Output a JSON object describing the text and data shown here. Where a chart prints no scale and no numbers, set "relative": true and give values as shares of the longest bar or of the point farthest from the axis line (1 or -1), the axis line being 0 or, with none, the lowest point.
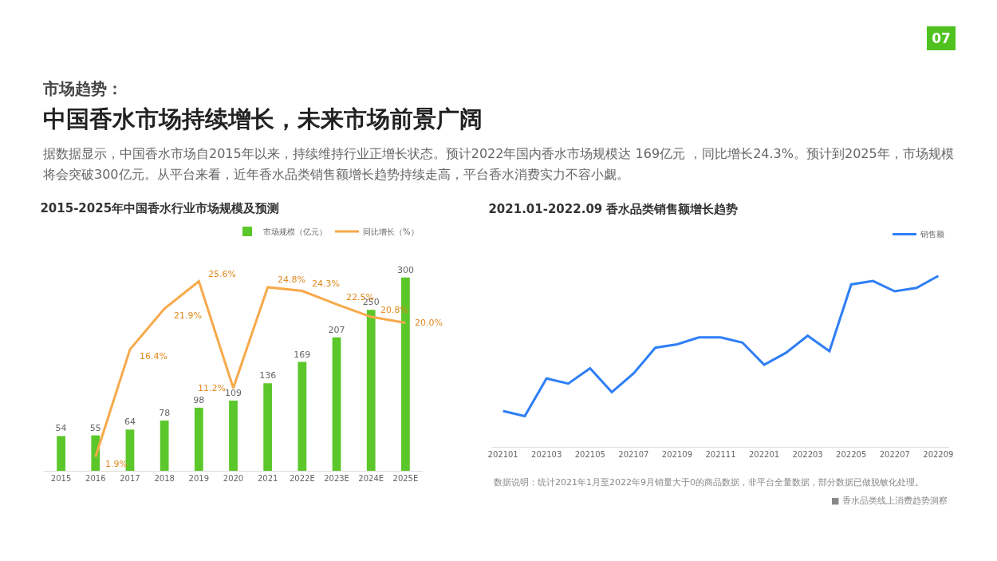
{
  "chart_data": [
    {
      "type": "other",
      "subtitle": "市场趋势：",
      "title": "中国香水市场持续增长，未来市场前景广阔",
      "annotations": [
        "据数据显示，中国香水市场自2015年以来，持续维持行业正增长状态。预计2022年国内香水市场规模达 169亿元 ，同比增长24.3%。预计到2025年，市场规模将会突破300亿元。从平台来看，近年香水品类销售额增长趋势持续走高，平台香水消费实力不容小觑。",
        "07"
      ]
    },
    {
      "type": "bar",
      "title": "2015-2025年中国香水行业市场规模及预测",
      "categories": [
        "2015",
        "2016",
        "2017",
        "2018",
        "2019",
        "2020",
        "2021",
        "2022E",
        "2023E",
        "2024E",
        "2025E"
      ],
      "legend": "top right",
      "series": [
        {
          "name": "市场规模（亿元）",
          "color": "#5cc72a",
          "values": [
            54,
            55,
            64,
            78,
            98,
            109,
            136,
            169,
            207,
            250,
            300
          ],
          "value_labels": [
            "54",
            "55",
            "64",
            "78",
            "98",
            "109",
            "136",
            "169",
            "207",
            "250",
            "300"
          ]
        },
        {
          "name": "同比增长（%）",
          "type": "line",
          "axis": "y2",
          "color": "#f7a94b",
          "values": [
            null,
            1.9,
            16.4,
            21.9,
            25.6,
            11.2,
            24.8,
            24.3,
            22.5,
            20.8,
            20.0
          ],
          "value_labels": [
            null,
            "1.9%",
            "16.4%",
            "21.9%",
            "25.6%",
            "11.2%",
            "24.8%",
            "24.3%",
            "22.5%",
            "20.8%",
            "20.0%"
          ]
        }
      ]
    },
    {
      "type": "line",
      "title": "2021.01-2022.09 香水品类销售额增长趋势",
      "relative": true,
      "legend": "top right",
      "categories": [
        "202101",
        null,
        "202103",
        null,
        "202105",
        null,
        "202107",
        null,
        "202109",
        null,
        "202111",
        null,
        "202201",
        null,
        "202203",
        null,
        "202205",
        null,
        "202207",
        null,
        "202209"
      ],
      "series": [
        {
          "name": "销售额",
          "color": "#2f7ff6",
          "values": [
            0.21,
            0.18,
            0.4,
            0.37,
            0.46,
            0.32,
            0.43,
            0.58,
            0.6,
            0.64,
            0.64,
            0.61,
            0.48,
            0.55,
            0.65,
            0.56,
            0.95,
            0.97,
            0.91,
            0.93,
            1
          ]
        }
      ],
      "annotations": [
        "数据说明：统计2021年1月至2022年9月销量大于0的商品数据，非平台全量数据，部分数据已做脱敏化处理。",
        "■ 香水品类线上消费趋势洞察"
      ]
    }
  ]
}
